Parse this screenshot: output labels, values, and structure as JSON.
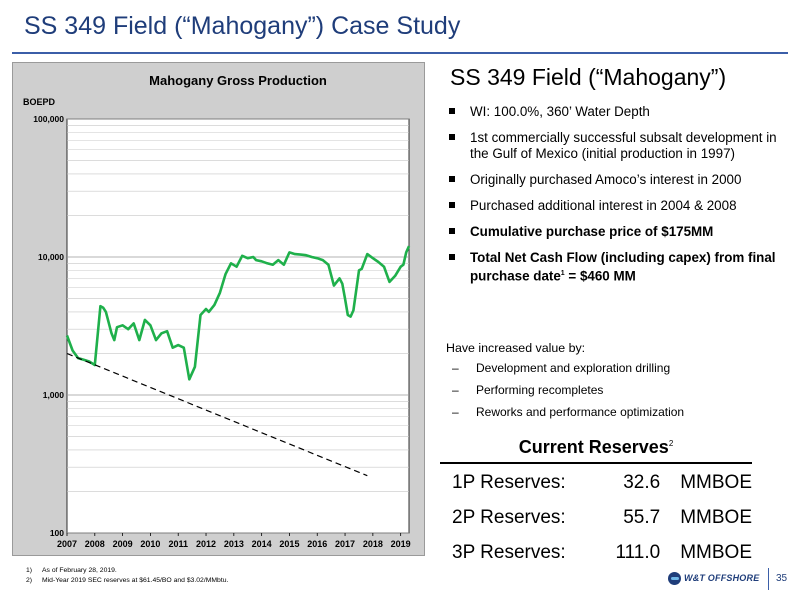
{
  "page_title": "SS 349 Field (“Mahogany”) Case Study",
  "right_title": "SS 349 Field (“Mahogany”)",
  "bullets": [
    {
      "text": "WI: 100.0%, 360’ Water Depth",
      "bold": false
    },
    {
      "text": "1st commercially successful subsalt development in the Gulf of Mexico (initial production in 1997)",
      "bold": false
    },
    {
      "text": "Originally purchased Amoco’s interest in 2000",
      "bold": false
    },
    {
      "text": "Purchased additional interest in 2004 & 2008",
      "bold": false
    },
    {
      "text": "Cumulative purchase price of $175MM",
      "bold": true
    },
    {
      "text": "Total Net Cash Flow (including capex) from final purchase date",
      "sup": "1",
      "tail": " = $460 MM",
      "bold": true
    }
  ],
  "increased": {
    "intro": "Have increased value by:",
    "items": [
      "Development and exploration drilling",
      "Performing recompletes",
      "Reworks and performance optimization"
    ]
  },
  "reserves": {
    "title": "Current Reserves",
    "title_sup": "2",
    "rows": [
      {
        "label": "1P Reserves:",
        "value": "32.6",
        "unit": "MMBOE"
      },
      {
        "label": "2P Reserves:",
        "value": "55.7",
        "unit": "MMBOE"
      },
      {
        "label": "3P Reserves:",
        "value": "111.0",
        "unit": "MMBOE"
      }
    ]
  },
  "footnotes": [
    {
      "num": "1)",
      "text": "As of February 28, 2019."
    },
    {
      "num": "2)",
      "text": "Mid-Year 2019 SEC reserves at $61.45/BO and $3.02/MMbtu."
    }
  ],
  "logo_text": "W&T OFFSHORE",
  "page_number": "35",
  "colors": {
    "title": "#1f3d7a",
    "line": "#1fb04b",
    "panel": "#cfcfcf"
  },
  "chart_data": {
    "type": "line",
    "title": "Mahogany Gross Production",
    "ylabel": "BOEPD",
    "y_scale": "log",
    "ylim": [
      100,
      100000
    ],
    "y_ticks": [
      "100",
      "1,000",
      "10,000",
      "100,000"
    ],
    "y_tick_values": [
      100,
      1000,
      10000,
      100000
    ],
    "x_ticks": [
      "2007",
      "2008",
      "2009",
      "2010",
      "2011",
      "2012",
      "2013",
      "2014",
      "2015",
      "2016",
      "2017",
      "2018",
      "2019"
    ],
    "xlim": [
      2007,
      2019.3
    ],
    "grid": true,
    "series": [
      {
        "style": "solid",
        "color": "#1fb04b",
        "x": [
          2007.0,
          2007.2,
          2007.4,
          2007.6,
          2007.8,
          2008.0,
          2008.2,
          2008.3,
          2008.4,
          2008.6,
          2008.7,
          2008.8,
          2009.0,
          2009.2,
          2009.4,
          2009.6,
          2009.8,
          2010.0,
          2010.2,
          2010.4,
          2010.6,
          2010.8,
          2011.0,
          2011.2,
          2011.4,
          2011.6,
          2011.8,
          2012.0,
          2012.1,
          2012.3,
          2012.5,
          2012.7,
          2012.9,
          2013.1,
          2013.3,
          2013.5,
          2013.7,
          2013.8,
          2014.0,
          2014.2,
          2014.4,
          2014.6,
          2014.8,
          2015.0,
          2015.2,
          2015.4,
          2015.6,
          2015.8,
          2016.0,
          2016.2,
          2016.4,
          2016.6,
          2016.8,
          2016.9,
          2017.0,
          2017.1,
          2017.2,
          2017.3,
          2017.5,
          2017.6,
          2017.8,
          2018.0,
          2018.2,
          2018.4,
          2018.6,
          2018.8,
          2019.0,
          2019.1,
          2019.2,
          2019.3
        ],
        "y": [
          2700,
          2100,
          1850,
          1800,
          1750,
          1650,
          4400,
          4300,
          4000,
          2800,
          2500,
          3100,
          3200,
          3000,
          3300,
          2500,
          3500,
          3200,
          2500,
          2800,
          2900,
          2200,
          2300,
          2200,
          1300,
          1600,
          3800,
          4200,
          4000,
          4500,
          5500,
          7500,
          9000,
          8500,
          10200,
          9800,
          10000,
          9500,
          9300,
          9000,
          8800,
          9500,
          8800,
          10800,
          10500,
          10400,
          10300,
          10000,
          9800,
          9500,
          8800,
          6200,
          7000,
          6400,
          5000,
          3800,
          3700,
          4100,
          8000,
          8200,
          10500,
          9800,
          9200,
          8500,
          6600,
          7300,
          8500,
          8800,
          10800,
          12000
        ]
      },
      {
        "style": "dashed",
        "color": "#000000",
        "x": [
          2007.0,
          2017.8
        ],
        "y": [
          2000,
          260
        ]
      }
    ]
  }
}
